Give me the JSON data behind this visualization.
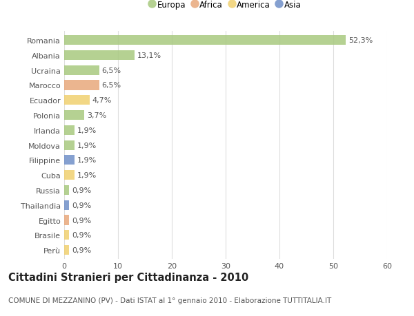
{
  "countries": [
    "Romania",
    "Albania",
    "Ucraina",
    "Marocco",
    "Ecuador",
    "Polonia",
    "Irlanda",
    "Moldova",
    "Filippine",
    "Cuba",
    "Russia",
    "Thailandia",
    "Egitto",
    "Brasile",
    "Perù"
  ],
  "values": [
    52.3,
    13.1,
    6.5,
    6.5,
    4.7,
    3.7,
    1.9,
    1.9,
    1.9,
    1.9,
    0.9,
    0.9,
    0.9,
    0.9,
    0.9
  ],
  "labels": [
    "52,3%",
    "13,1%",
    "6,5%",
    "6,5%",
    "4,7%",
    "3,7%",
    "1,9%",
    "1,9%",
    "1,9%",
    "1,9%",
    "0,9%",
    "0,9%",
    "0,9%",
    "0,9%",
    "0,9%"
  ],
  "continents": [
    "Europa",
    "Europa",
    "Europa",
    "Africa",
    "America",
    "Europa",
    "Europa",
    "Europa",
    "Asia",
    "America",
    "Europa",
    "Asia",
    "Africa",
    "America",
    "America"
  ],
  "continent_colors": {
    "Europa": "#a8c97f",
    "Africa": "#e8a87c",
    "America": "#f0d070",
    "Asia": "#7090c8"
  },
  "legend_order": [
    "Europa",
    "Africa",
    "America",
    "Asia"
  ],
  "xlim": [
    0,
    60
  ],
  "xticks": [
    0,
    10,
    20,
    30,
    40,
    50,
    60
  ],
  "title": "Cittadini Stranieri per Cittadinanza - 2010",
  "subtitle": "COMUNE DI MEZZANINO (PV) - Dati ISTAT al 1° gennaio 2010 - Elaborazione TUTTITALIA.IT",
  "background_color": "#ffffff",
  "grid_color": "#dddddd",
  "bar_height": 0.65,
  "label_fontsize": 8,
  "tick_fontsize": 8,
  "title_fontsize": 10.5,
  "subtitle_fontsize": 7.5,
  "legend_fontsize": 8.5
}
